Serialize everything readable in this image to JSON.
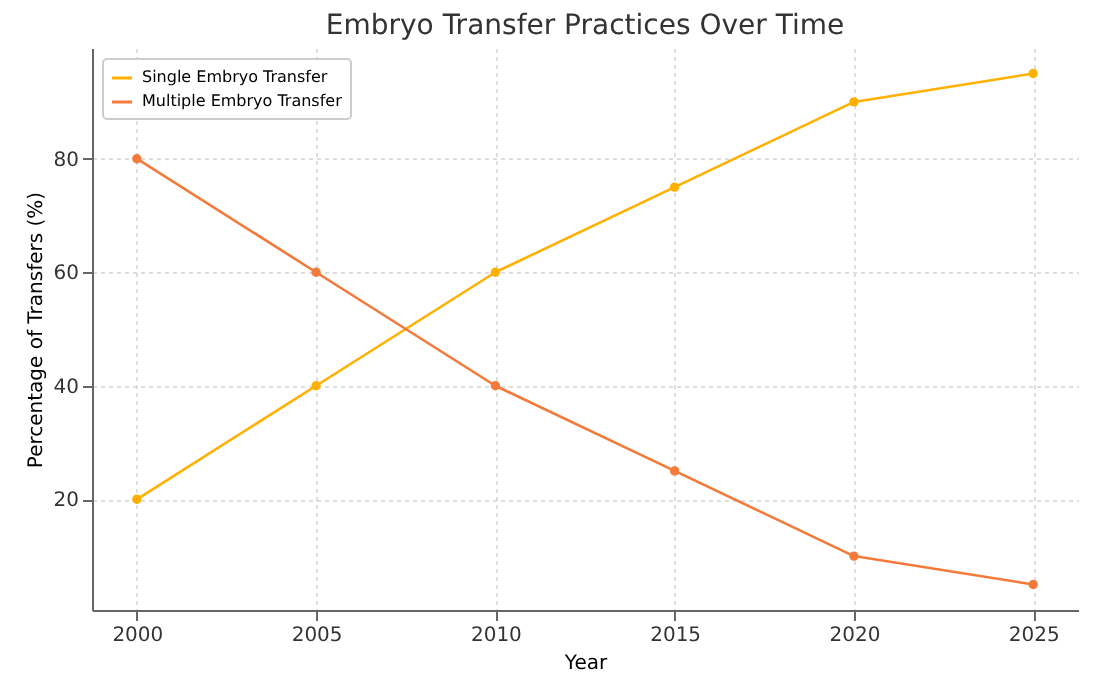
{
  "chart_data": {
    "type": "line",
    "title": "Embryo Transfer Practices Over Time",
    "xlabel": "Year",
    "ylabel": "Percentage of Transfers (%)",
    "x": [
      2000,
      2005,
      2010,
      2015,
      2020,
      2025
    ],
    "series": [
      {
        "name": "Single Embryo Transfer",
        "color": "#ffb000",
        "values": [
          20,
          40,
          60,
          75,
          90,
          95
        ]
      },
      {
        "name": "Multiple Embryo Transfer",
        "color": "#f47a3a",
        "values": [
          80,
          60,
          40,
          25,
          10,
          5
        ]
      }
    ],
    "xlim": [
      1998.75,
      2026.25
    ],
    "xticks": [
      2000,
      2005,
      2010,
      2015,
      2020,
      2025
    ],
    "ylim": [
      0.5,
      99.5
    ],
    "yticks": [
      20,
      40,
      60,
      80
    ],
    "grid": true,
    "legend": "top left",
    "marker": "circle",
    "line_style": "solid"
  }
}
